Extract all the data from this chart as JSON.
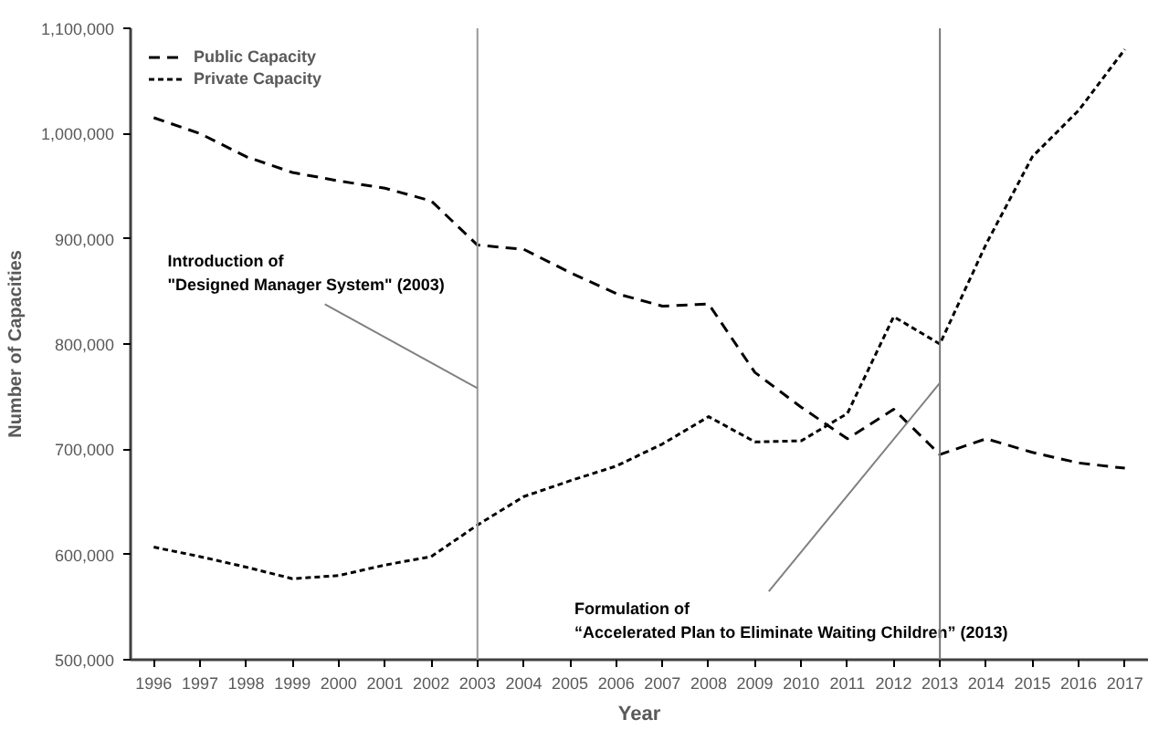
{
  "chart_data": {
    "type": "line",
    "xlabel": "Year",
    "ylabel": "Number of Capacities",
    "categories": [
      "1996",
      "1997",
      "1998",
      "1999",
      "2000",
      "2001",
      "2002",
      "2003",
      "2004",
      "2005",
      "2006",
      "2007",
      "2008",
      "2009",
      "2010",
      "2011",
      "2012",
      "2013",
      "2014",
      "2015",
      "2016",
      "2017"
    ],
    "series": [
      {
        "name": "Public Capacity",
        "color": "#000000",
        "line_style": "dashed",
        "values": [
          1015000,
          1000000,
          978000,
          963000,
          955000,
          948000,
          936000,
          894000,
          890000,
          868000,
          848000,
          836000,
          838000,
          773000,
          740000,
          710000,
          738000,
          695000,
          710000,
          697000,
          687000,
          682000
        ]
      },
      {
        "name": "Private Capacity",
        "color": "#000000",
        "line_style": "dotted",
        "values": [
          607000,
          598000,
          588000,
          577000,
          580000,
          590000,
          598000,
          628000,
          655000,
          670000,
          684000,
          705000,
          731000,
          707000,
          708000,
          734000,
          826000,
          800000,
          895000,
          978000,
          1022000,
          1080000
        ]
      }
    ],
    "ylim": [
      500000,
      1100000
    ],
    "yticks": [
      {
        "value": 500000,
        "label": "500,000"
      },
      {
        "value": 600000,
        "label": "600,000"
      },
      {
        "value": 700000,
        "label": "700,000"
      },
      {
        "value": 800000,
        "label": "800,000"
      },
      {
        "value": 900000,
        "label": "900,000"
      },
      {
        "value": 1000000,
        "label": "1,000,000"
      },
      {
        "value": 1100000,
        "label": "1,100,000"
      }
    ],
    "ref_lines": [
      {
        "axis": "x",
        "value": "2003",
        "color": "#999999"
      },
      {
        "axis": "x",
        "value": "2013",
        "color": "#777777"
      }
    ],
    "annotations": [
      {
        "text": "Introduction of\n\"Designed Manager System\" (2003)",
        "x": "2003",
        "y": 758000
      },
      {
        "text": "Formulation of\n“Accelerated Plan to Eliminate Waiting Children” (2013)",
        "x": "2013",
        "y": 763000
      }
    ],
    "legend": "top left",
    "grid": false,
    "marker": "none"
  }
}
